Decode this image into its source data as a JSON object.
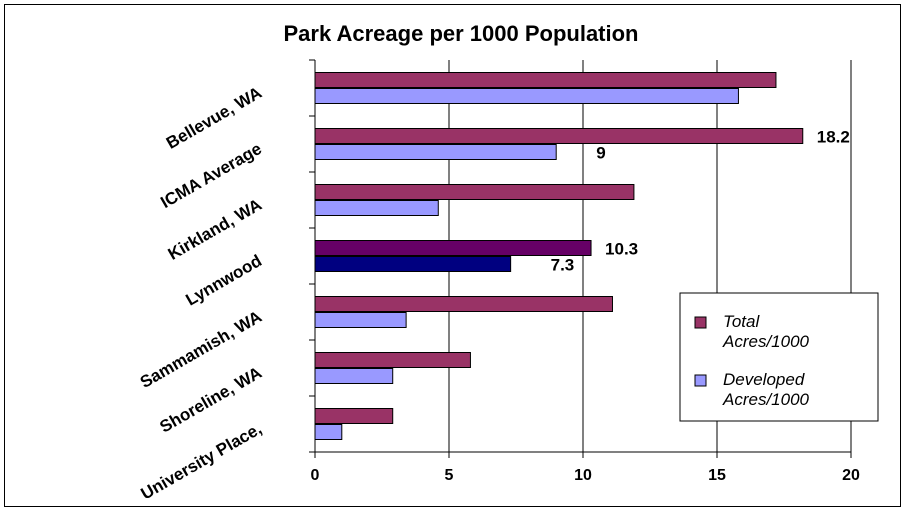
{
  "chart_data": {
    "type": "bar",
    "orientation": "horizontal",
    "title": "Park Acreage per 1000 Population",
    "categories": [
      "Bellevue, WA",
      "ICMA Average",
      "Kirkland, WA",
      "Lynnwood",
      "Sammamish, WA",
      "Shoreline, WA",
      "University Place,"
    ],
    "series": [
      {
        "name": "Total Acres/1000",
        "values": [
          17.2,
          18.2,
          11.9,
          10.3,
          11.1,
          5.8,
          2.9
        ],
        "color": "#993366",
        "highlight_color": "#660066",
        "data_labels": [
          null,
          "18.2",
          null,
          "10.3",
          null,
          null,
          null
        ]
      },
      {
        "name": "Developed Acres/1000",
        "values": [
          15.8,
          9.0,
          4.6,
          7.3,
          3.4,
          2.9,
          1.0
        ],
        "color": "#9999ff",
        "highlight_color": "#000080",
        "data_labels": [
          null,
          "9",
          null,
          "7.3",
          null,
          null,
          null
        ]
      }
    ],
    "highlight_category": "Lynnwood",
    "xlim": [
      0,
      20
    ],
    "xticks": [
      0,
      5,
      10,
      15,
      20
    ],
    "grid": true,
    "legend_position": "right"
  }
}
